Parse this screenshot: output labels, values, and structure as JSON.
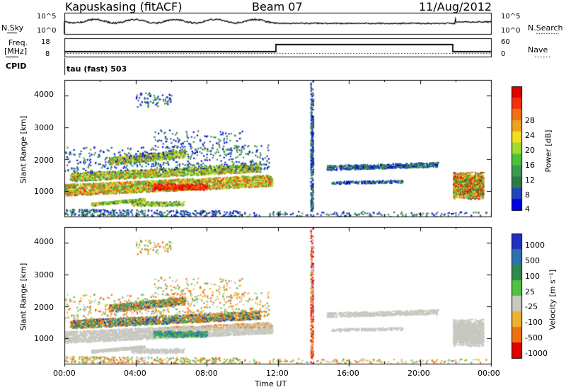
{
  "header": {
    "station": "Kapuskasing (fitACF)",
    "beam": "Beam 07",
    "date": "11/Aug/2012"
  },
  "top_panels": {
    "nsky_label": "N.Sky",
    "nsearch_label": "N.Search",
    "noise_ticks_left": [
      "10^5",
      "10^0"
    ],
    "noise_ticks_right": [
      "10^5",
      "10^0"
    ],
    "freq_label": "Freq.",
    "freq_unit": "[MHz]",
    "freq_ticks": [
      "18",
      "8"
    ],
    "nave_label": "Nave",
    "nave_ticks": [
      "60",
      "0"
    ],
    "cpid_label": "CPID",
    "cpid_text": "tau (fast) 503"
  },
  "chart_data": [
    {
      "type": "heatmap",
      "title": "",
      "ylabel": "Slant Range [km]",
      "xlabel": "Time UT",
      "ylim": [
        200,
        4500
      ],
      "y_ticks": [
        "1000",
        "2000",
        "3000",
        "4000"
      ],
      "x_ticks": [
        "00:00",
        "04:00",
        "08:00",
        "12:00",
        "16:00",
        "20:00",
        "00:00"
      ],
      "colorbar": {
        "label": "Power [dB]",
        "ticks": [
          "28",
          "24",
          "20",
          "16",
          "12",
          "8",
          "4"
        ],
        "colors": [
          "#0000e6",
          "#2244bb",
          "#2e7a45",
          "#3a9a50",
          "#4cc23c",
          "#a0dc30",
          "#f0e020",
          "#f0a020",
          "#f07010",
          "#f03010",
          "#e00000"
        ]
      }
    },
    {
      "type": "heatmap",
      "title": "",
      "ylabel": "Slant Range [km]",
      "xlabel": "Time UT",
      "ylim": [
        200,
        4500
      ],
      "y_ticks": [
        "1000",
        "2000",
        "3000",
        "4000"
      ],
      "x_ticks": [
        "00:00",
        "04:00",
        "08:00",
        "12:00",
        "16:00",
        "20:00",
        "00:00"
      ],
      "colorbar": {
        "label": "Velocity [m s⁻¹]",
        "ticks": [
          "1000",
          "500",
          "100",
          "25",
          "-25",
          "-100",
          "-500",
          "-1000"
        ],
        "colors": [
          "#2030c0",
          "#3070b0",
          "#2e8a4a",
          "#50c040",
          "#c8c8c0",
          "#f0b030",
          "#f07010",
          "#e00000"
        ]
      }
    }
  ]
}
